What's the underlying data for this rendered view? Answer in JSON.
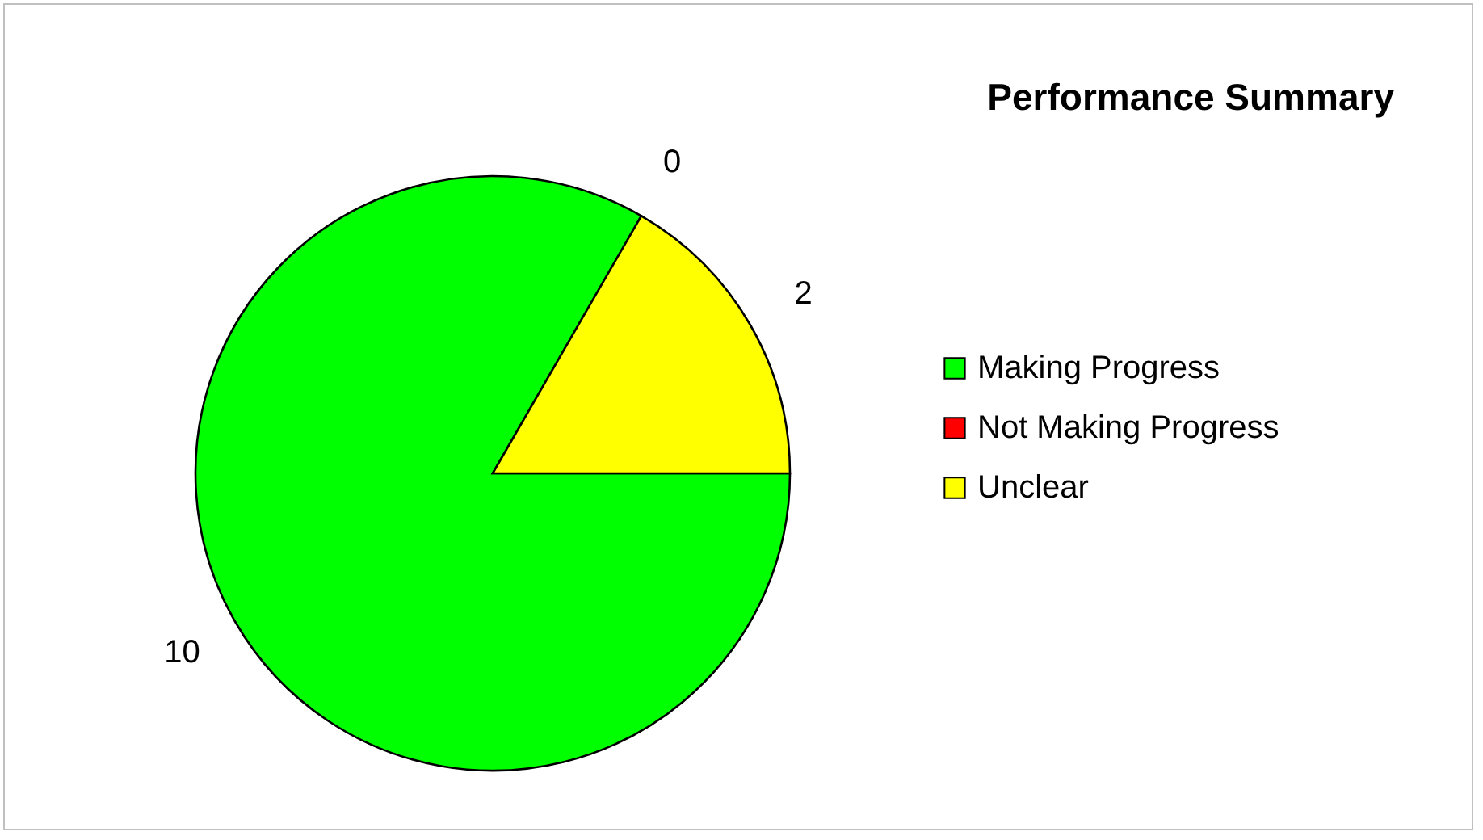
{
  "chart_data": {
    "type": "pie",
    "title": "Performance Summary",
    "categories": [
      "Making Progress",
      "Not Making Progress",
      "Unclear"
    ],
    "values": [
      10,
      0,
      2
    ],
    "colors": [
      "#00ff00",
      "#ff0000",
      "#ffff00"
    ],
    "value_labels": [
      "10",
      "0",
      "2"
    ],
    "legend": "right"
  }
}
